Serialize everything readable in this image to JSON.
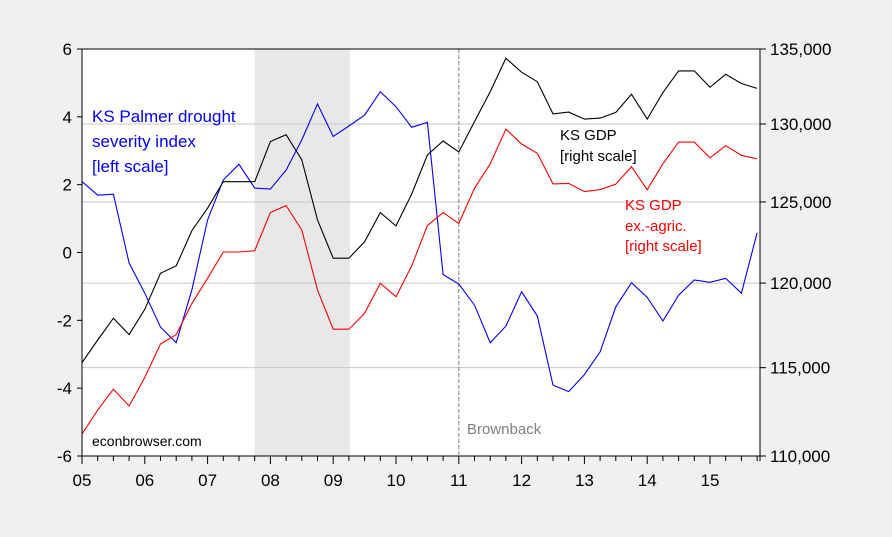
{
  "chart_data": {
    "type": "line",
    "x_start": "2005Q1",
    "frequency": "quarterly",
    "x_ticks": [
      "05",
      "06",
      "07",
      "08",
      "09",
      "10",
      "11",
      "12",
      "13",
      "14",
      "15"
    ],
    "left_axis": {
      "ticks": [
        "6",
        "4",
        "2",
        "0",
        "-2",
        "-4",
        "-6"
      ],
      "values": [
        6,
        4,
        2,
        0,
        -2,
        -4,
        -6
      ],
      "ylim": [
        -6,
        6
      ]
    },
    "right_axis": {
      "ticks": [
        "135,000",
        "130,000",
        "125,000",
        "120,000",
        "115,000",
        "110,000"
      ],
      "values": [
        135000,
        130000,
        125000,
        120000,
        115000,
        110000
      ],
      "ylim": [
        110000,
        135000
      ],
      "scale": "log"
    },
    "grid": "horizontal on right-axis ticks",
    "recession": {
      "start_index": 11,
      "end_index": 17,
      "label": "",
      "color": "#e8e8e8"
    },
    "event": {
      "index": 24,
      "label": "Brownback"
    },
    "series": [
      {
        "name": "KS Palmer drought severity index [left scale]",
        "axis": "left",
        "color": "#0000ff",
        "label_lines": [
          "KS Palmer drought",
          "severity index",
          "[left scale]"
        ],
        "values": [
          2.09,
          1.69,
          1.72,
          -0.31,
          -1.2,
          -2.2,
          -2.66,
          -1.1,
          0.96,
          2.14,
          2.6,
          1.9,
          1.87,
          2.43,
          3.32,
          4.38,
          3.42,
          3.73,
          4.05,
          4.74,
          4.3,
          3.69,
          3.84,
          -0.65,
          -0.93,
          -1.55,
          -2.66,
          -2.17,
          -1.16,
          -1.87,
          -3.91,
          -4.1,
          -3.6,
          -2.93,
          -1.6,
          -0.89,
          -1.32,
          -2.02,
          -1.26,
          -0.81,
          -0.88,
          -0.76,
          -1.2,
          0.58
        ]
      },
      {
        "name": "KS GDP [right scale]",
        "axis": "right",
        "color": "#000000",
        "label_lines": [
          "KS GDP",
          "[right scale]"
        ],
        "values": [
          115290,
          116610,
          117900,
          116930,
          118430,
          120590,
          121040,
          123210,
          124610,
          126280,
          126280,
          126280,
          128860,
          129300,
          127680,
          123870,
          121510,
          121510,
          122520,
          124330,
          123500,
          125500,
          127990,
          128890,
          128180,
          130160,
          132130,
          134370,
          133430,
          132800,
          130660,
          130780,
          130320,
          130390,
          130760,
          131960,
          130320,
          132070,
          133520,
          133520,
          132420,
          133290,
          132680,
          132350
        ]
      },
      {
        "name": "KS GDP ex.-agric. [right scale]",
        "axis": "right",
        "color": "#ff0000",
        "label_lines": [
          "KS GDP",
          "ex.-agric.",
          "[right scale]"
        ],
        "values": [
          111220,
          112570,
          113760,
          112800,
          114440,
          116380,
          116930,
          118780,
          120290,
          121890,
          121890,
          121970,
          124330,
          124770,
          123250,
          119580,
          117250,
          117250,
          118190,
          119990,
          119180,
          121040,
          123520,
          124330,
          123660,
          125860,
          127420,
          129660,
          128700,
          128100,
          126140,
          126170,
          125650,
          125770,
          126130,
          127240,
          125770,
          127420,
          128820,
          128820,
          127810,
          128590,
          127970,
          127740
        ]
      }
    ],
    "annotations": [
      "econbrowser.com",
      "Brownback"
    ],
    "watermark": "econbrowser.com"
  }
}
